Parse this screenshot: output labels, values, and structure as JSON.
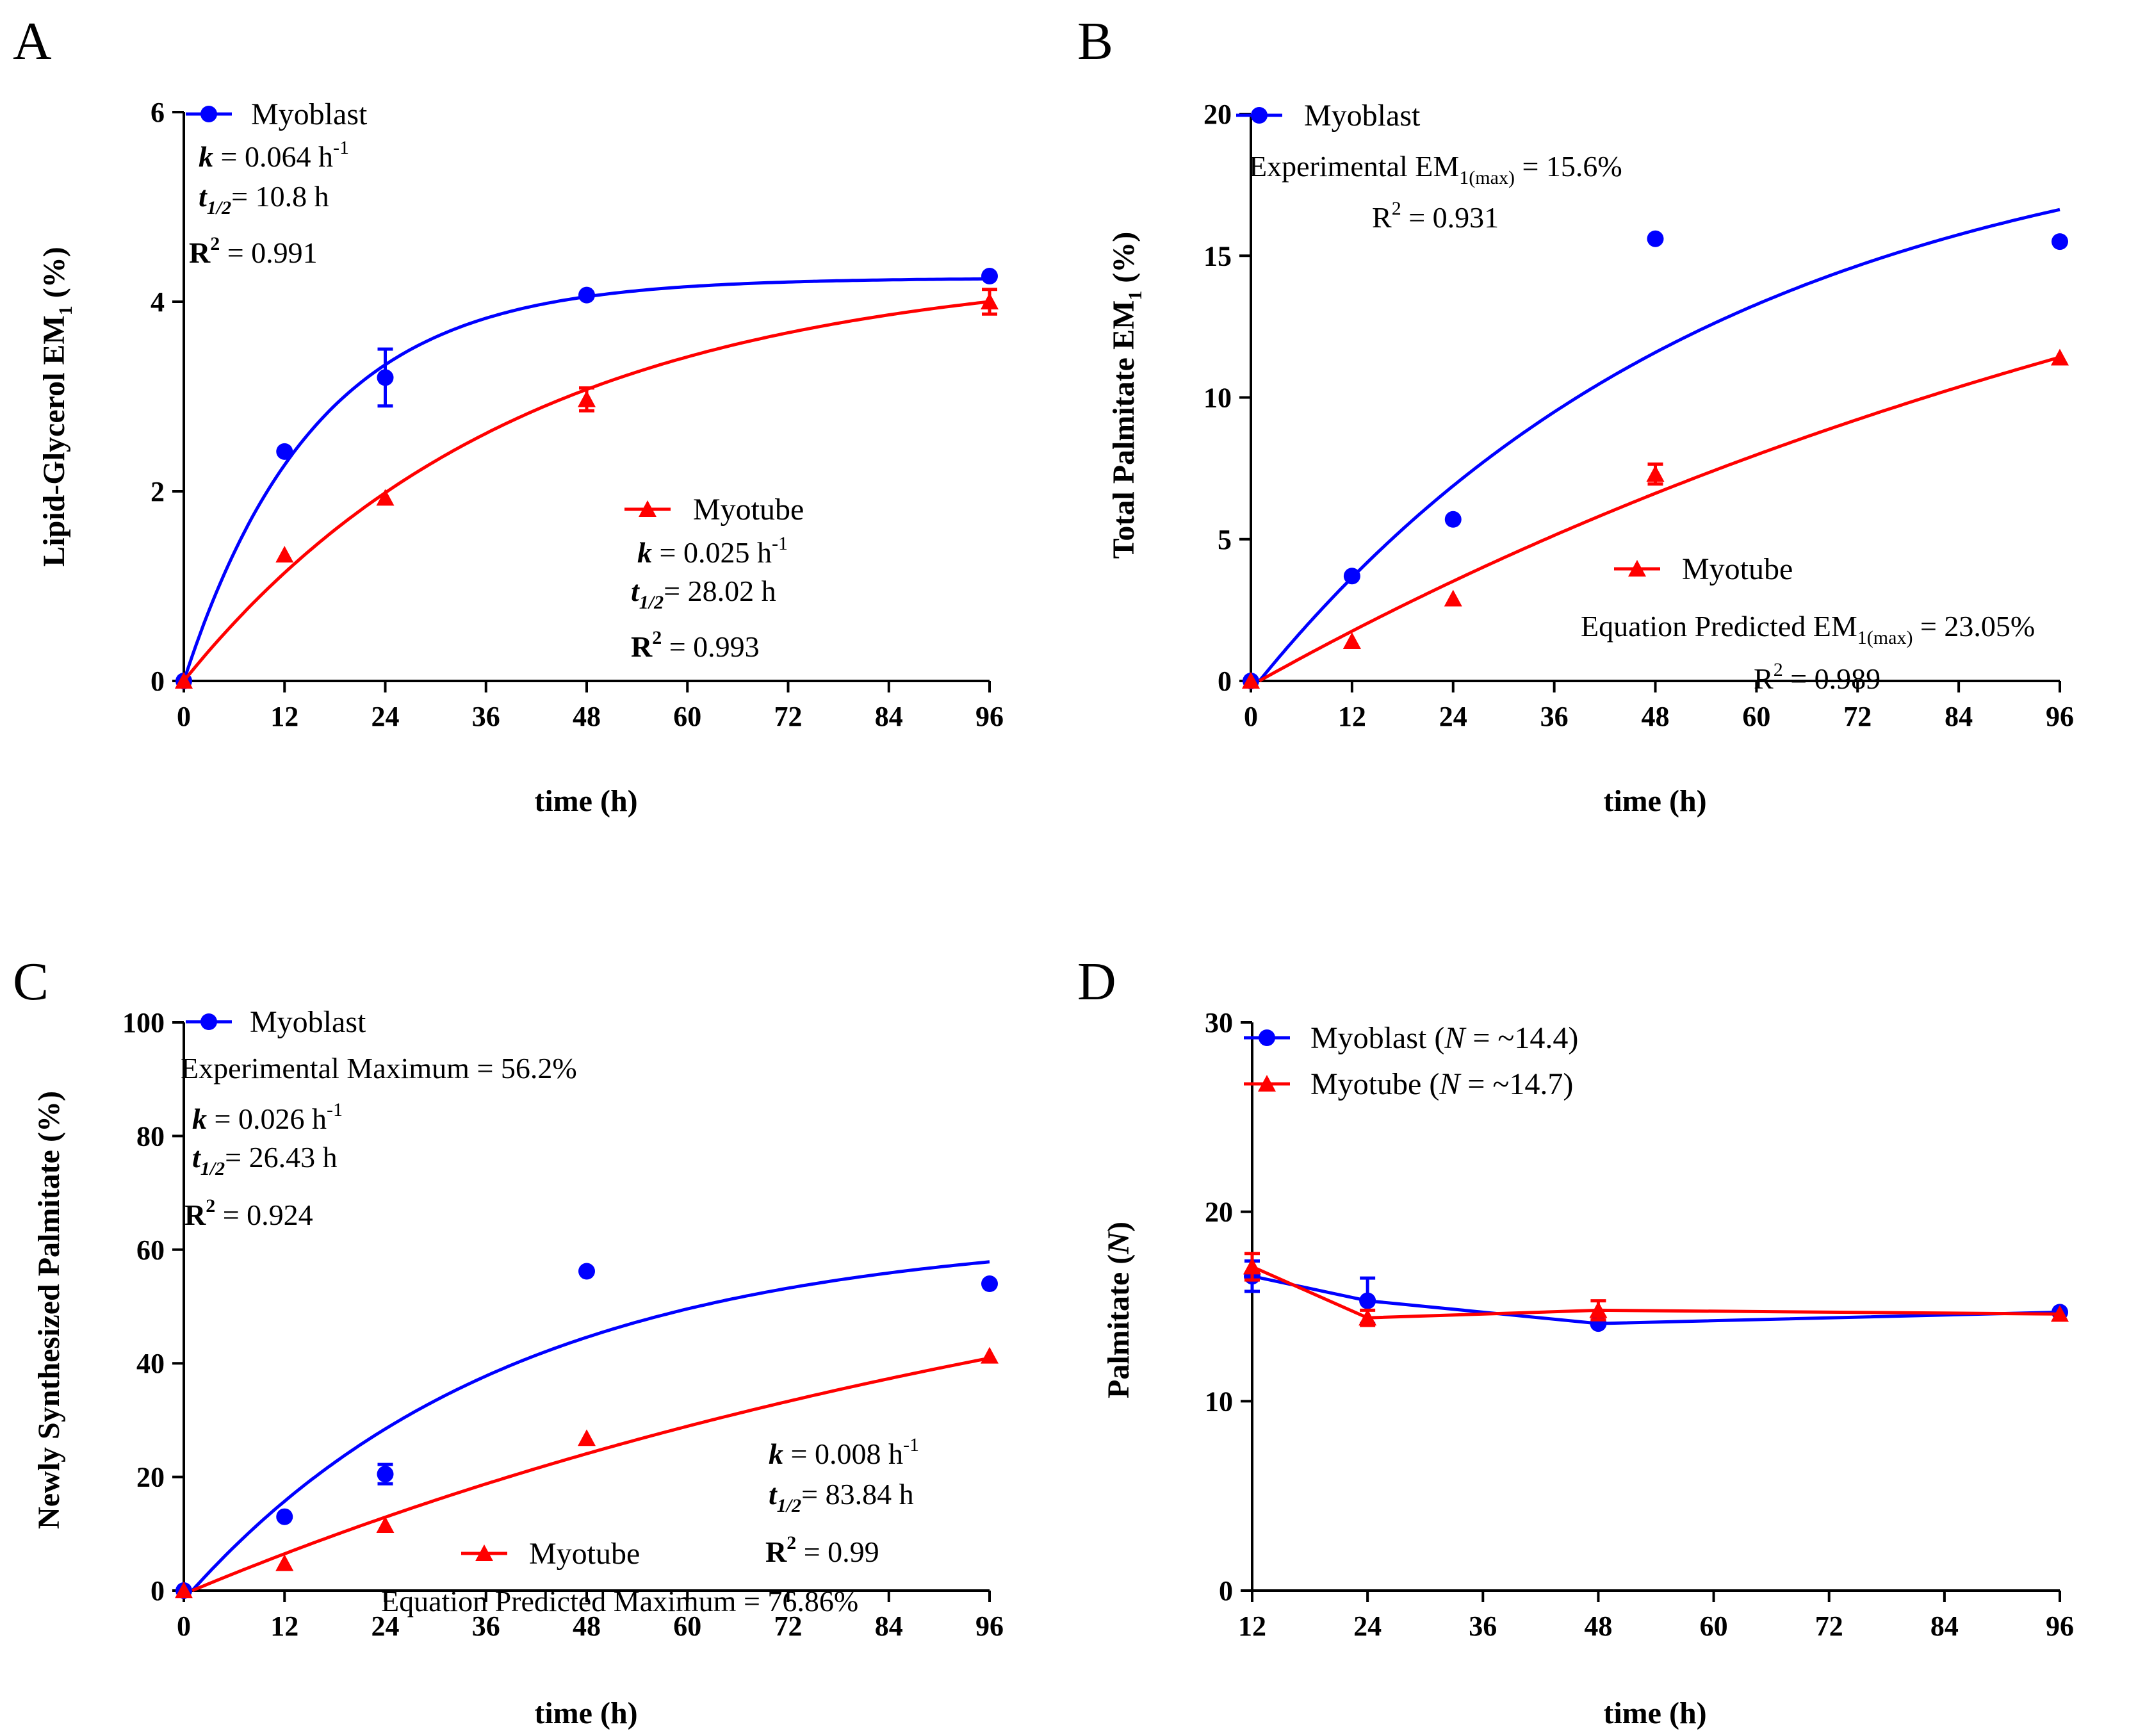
{
  "colors": {
    "myoblast": "#0000ff",
    "myotube": "#ff0000",
    "axis": "#000000"
  },
  "chart_data": [
    {
      "id": "A",
      "panel_label": "A",
      "type": "scatter",
      "xlabel": "time (h)",
      "ylabel": {
        "main": "Lipid-Glycerol EM",
        "sub": "1",
        "suffix": " (%)"
      },
      "xlim": [
        0,
        96
      ],
      "ylim": [
        0,
        6
      ],
      "xticks": [
        0,
        12,
        24,
        36,
        48,
        60,
        72,
        84,
        96
      ],
      "yticks": [
        0,
        2,
        4,
        6
      ],
      "series": [
        {
          "name": "Myoblast",
          "marker": "circle",
          "color": "#0000ff",
          "x": [
            0,
            12,
            24,
            48,
            96
          ],
          "y": [
            0,
            2.42,
            3.2,
            4.07,
            4.27
          ],
          "err": [
            0,
            0,
            0.3,
            0,
            0
          ],
          "fit": {
            "kind": "exp_rise",
            "plateau": 4.25,
            "k": 0.064,
            "x0": 0,
            "xmax": 96
          }
        },
        {
          "name": "Myotube",
          "marker": "triangle",
          "color": "#ff0000",
          "x": [
            0,
            12,
            24,
            48,
            96
          ],
          "y": [
            0,
            1.33,
            1.93,
            2.97,
            4.0
          ],
          "err": [
            0,
            0,
            0,
            0.12,
            0.13
          ],
          "fit": {
            "kind": "exp_rise",
            "plateau": 4.4,
            "k": 0.025,
            "x0": 0,
            "xmax": 96
          }
        }
      ],
      "annotations": {
        "myoblast": {
          "legend": "Myoblast",
          "k": "k",
          "k_val": " = 0.064 h",
          "k_exp": "-1",
          "t": "t",
          "t_sub": "1/2",
          "t_val": "= 10.8 h",
          "r": "R",
          "r_exp": "2",
          "r_val": " = 0.991"
        },
        "myotube": {
          "legend": "Myotube",
          "k": "k",
          "k_val": " = 0.025 h",
          "k_exp": "-1",
          "t": "t",
          "t_sub": "1/2",
          "t_val": "= 28.02 h",
          "r": "R",
          "r_exp": "2",
          "r_val": " = 0.993"
        }
      }
    },
    {
      "id": "B",
      "panel_label": "B",
      "type": "scatter",
      "xlabel": "time (h)",
      "ylabel": {
        "main": "Total Palmitate EM",
        "sub": "1",
        "suffix": " (%)"
      },
      "xlim": [
        0,
        96
      ],
      "ylim": [
        0,
        20
      ],
      "xticks": [
        0,
        12,
        24,
        36,
        48,
        60,
        72,
        84,
        96
      ],
      "yticks": [
        0,
        5,
        10,
        15,
        20
      ],
      "series": [
        {
          "name": "Myoblast",
          "marker": "circle",
          "color": "#0000ff",
          "x": [
            0,
            12,
            24,
            48,
            96
          ],
          "y": [
            0,
            3.7,
            5.7,
            15.6,
            15.5
          ],
          "err": [
            0,
            0,
            0,
            0,
            0
          ],
          "fit": {
            "kind": "exp_rise",
            "plateau": 20.3,
            "k": 0.018,
            "x0": 1,
            "xmax": 96
          }
        },
        {
          "name": "Myotube",
          "marker": "triangle",
          "color": "#ff0000",
          "x": [
            0,
            12,
            24,
            48,
            96
          ],
          "y": [
            0,
            1.4,
            2.9,
            7.3,
            11.4
          ],
          "err": [
            0,
            0,
            0,
            0.35,
            0
          ],
          "fit": {
            "kind": "exp_rise",
            "plateau": 23.05,
            "k": 0.0072,
            "x0": 1,
            "xmax": 96
          }
        }
      ],
      "annotations": {
        "myoblast": {
          "legend": "Myoblast",
          "exp_text": "Experimental EM",
          "exp_sub": "1(max)",
          "exp_val": " = 15.6%",
          "r": "R",
          "r_exp": "2",
          "r_val": " = 0.931"
        },
        "myotube": {
          "legend": "Myotube",
          "pred_text": "Equation Predicted EM",
          "pred_sub": "1(max)",
          "pred_val": " = 23.05%",
          "r": "R",
          "r_exp": "2",
          "r_val": " = 0.989"
        }
      }
    },
    {
      "id": "C",
      "panel_label": "C",
      "type": "scatter",
      "xlabel": "time (h)",
      "ylabel": {
        "main": "Newly Synthesized Palmitate (%)",
        "sub": "",
        "suffix": ""
      },
      "xlim": [
        0,
        96
      ],
      "ylim": [
        0,
        100
      ],
      "xticks": [
        0,
        12,
        24,
        36,
        48,
        60,
        72,
        84,
        96
      ],
      "yticks": [
        0,
        20,
        40,
        60,
        80,
        100
      ],
      "series": [
        {
          "name": "Myoblast",
          "marker": "circle",
          "color": "#0000ff",
          "x": [
            0,
            12,
            24,
            48,
            96
          ],
          "y": [
            0,
            13,
            20.5,
            56.2,
            54
          ],
          "err": [
            0,
            0,
            1.7,
            0,
            0
          ],
          "fit": {
            "kind": "exp_rise",
            "plateau": 63.2,
            "k": 0.026,
            "x0": 1,
            "xmax": 96
          }
        },
        {
          "name": "Myotube",
          "marker": "triangle",
          "color": "#ff0000",
          "x": [
            0,
            12,
            24,
            48,
            96
          ],
          "y": [
            0,
            4.8,
            11.5,
            26.8,
            41.3
          ],
          "err": [
            0,
            0,
            0,
            0,
            0
          ],
          "fit": {
            "kind": "exp_rise",
            "plateau": 76.86,
            "k": 0.008,
            "x0": 1,
            "xmax": 96
          }
        }
      ],
      "annotations": {
        "myoblast": {
          "legend": "Myoblast",
          "exp_text": "Experimental Maximum = 56.2%",
          "k": "k",
          "k_val": " = 0.026 h",
          "k_exp": "-1",
          "t": "t",
          "t_sub": "1/2",
          "t_val": "= 26.43 h",
          "r": "R",
          "r_exp": "2",
          "r_val": " = 0.924"
        },
        "myotube": {
          "legend": "Myotube",
          "pred_text": "Equation Predicted Maximum = 76.86%",
          "k": "k",
          "k_val": " = 0.008 h",
          "k_exp": "-1",
          "t": "t",
          "t_sub": "1/2",
          "t_val": "= 83.84 h",
          "r": "R",
          "r_exp": "2",
          "r_val": " = 0.99"
        }
      }
    },
    {
      "id": "D",
      "panel_label": "D",
      "type": "line",
      "xlabel": "time (h)",
      "ylabel": {
        "main": "Palmitate (",
        "italic": "N",
        "suffix": ")"
      },
      "xlim": [
        12,
        96
      ],
      "ylim": [
        0,
        30
      ],
      "xticks": [
        12,
        24,
        36,
        48,
        60,
        72,
        84,
        96
      ],
      "yticks": [
        0,
        10,
        20,
        30
      ],
      "series": [
        {
          "name": "Myoblast",
          "marker": "circle",
          "color": "#0000ff",
          "x": [
            12,
            24,
            48,
            96
          ],
          "y": [
            16.6,
            15.3,
            14.1,
            14.7
          ],
          "err": [
            0.8,
            1.2,
            0,
            0
          ]
        },
        {
          "name": "Myotube",
          "marker": "triangle",
          "color": "#ff0000",
          "x": [
            12,
            24,
            48,
            96
          ],
          "y": [
            17.1,
            14.4,
            14.8,
            14.6
          ],
          "err": [
            0.7,
            0.4,
            0.5,
            0
          ]
        }
      ],
      "legend": [
        {
          "name": "Myoblast",
          "open": " (",
          "n": "N",
          "rest": " = ~14.4)"
        },
        {
          "name": "Myotube",
          "open": " (",
          "n": "N",
          "rest": " = ~14.7)"
        }
      ]
    }
  ]
}
